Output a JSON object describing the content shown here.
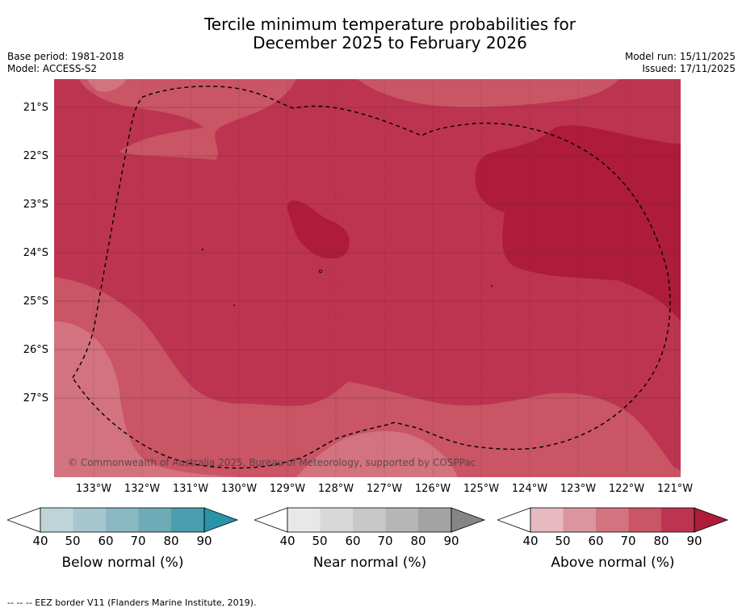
{
  "title": {
    "line1": "Tercile minimum temperature probabilities for",
    "line2": "December 2025 to February 2026"
  },
  "meta_left": {
    "base_period": "Base period: 1981-2018",
    "model": "Model: ACCESS-S2"
  },
  "meta_right": {
    "model_run": "Model run: 15/11/2025",
    "issued": "Issued: 17/11/2025"
  },
  "map": {
    "copyright": "© Commonwealth of Australia 2025, Bureau of Meteorology, supported by COSPPac",
    "lat_labels": [
      "21°S",
      "22°S",
      "23°S",
      "24°S",
      "25°S",
      "26°S",
      "27°S"
    ],
    "lon_labels": [
      "133°W",
      "132°W",
      "131°W",
      "130°W",
      "129°W",
      "128°W",
      "127°W",
      "126°W",
      "125°W",
      "124°W",
      "123°W",
      "122°W",
      "121°W"
    ],
    "lon_range_deg_west": [
      133.8,
      120.9
    ],
    "lat_range_deg_south": [
      20.4,
      28.6
    ],
    "dominant_category": "Above normal",
    "dominant_range_pct": "80-90",
    "colors": {
      "c60_70": "#d2737f",
      "c70_80": "#c95565",
      "c80_90": "#bd3450",
      "c90": "#ae1c3a",
      "grid": "#4a2a2a",
      "eez": "#000000"
    }
  },
  "colorbars": [
    {
      "title": "Below normal (%)",
      "ticks": [
        "40",
        "50",
        "60",
        "70",
        "80",
        "90"
      ],
      "colors": [
        "#bfd4d9",
        "#a6c7cf",
        "#8ab8c3",
        "#6faab7",
        "#4b9ead",
        "#2b93a8"
      ]
    },
    {
      "title": "Near normal (%)",
      "ticks": [
        "40",
        "50",
        "60",
        "70",
        "80",
        "90"
      ],
      "colors": [
        "#e8e8e8",
        "#d8d8d8",
        "#c8c8c8",
        "#b6b6b6",
        "#a3a3a3",
        "#858585"
      ]
    },
    {
      "title": "Above normal (%)",
      "ticks": [
        "40",
        "50",
        "60",
        "70",
        "80",
        "90"
      ],
      "colors": [
        "#e7bac1",
        "#da959f",
        "#d2737f",
        "#c95565",
        "#bd3450",
        "#ae1c3a"
      ]
    }
  ],
  "footer": "--  --  -- EEZ border V11 (Flanders Marine Institute, 2019)."
}
